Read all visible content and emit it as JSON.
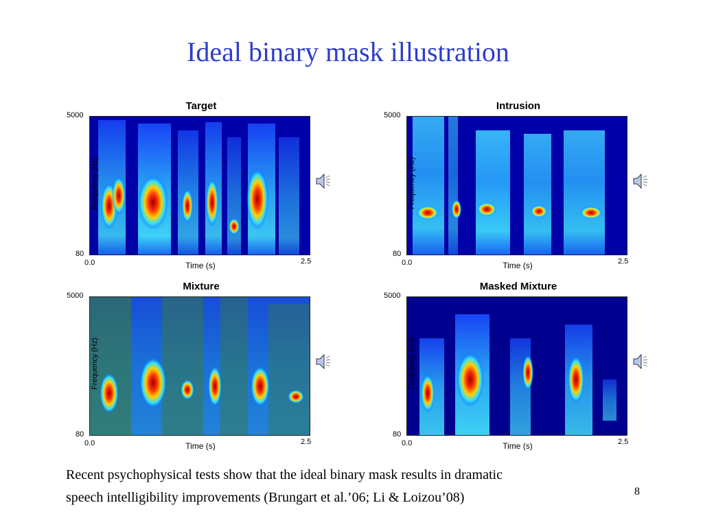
{
  "slide": {
    "title": "Ideal binary mask illustration",
    "caption_line1": "Recent psychophysical tests show that the ideal binary mask results in dramatic",
    "caption_line2": "speech intelligibility improvements (Brungart et al.’06; Li & Loizou’08)",
    "page_number": "8"
  },
  "colors": {
    "title": "#2b3ec9",
    "spectrogram_background": "#00008f",
    "mixture_overlay": "#3a7a3a"
  },
  "panels": [
    {
      "title": "Target",
      "ylabel": "Frequency (Hz)",
      "xlabel": "Time (s)",
      "y_top": "5000",
      "y_bottom": "80",
      "x_left": "0.0",
      "x_right": "2.5",
      "icon": "speaker-icon"
    },
    {
      "title": "Intrusion",
      "ylabel": "Frequency (Hz)",
      "xlabel": "Time (s)",
      "y_top": "5000",
      "y_bottom": "80",
      "x_left": "0.0",
      "x_right": "2.5",
      "icon": "speaker-icon"
    },
    {
      "title": "Mixture",
      "ylabel": "Frequency (Hz)",
      "xlabel": "Time (s)",
      "y_top": "5000",
      "y_bottom": "80",
      "x_left": "0.0",
      "x_right": "2.5",
      "icon": "speaker-icon"
    },
    {
      "title": "Masked Mixture",
      "ylabel": "Frequency (Hz)",
      "xlabel": "Time (s)",
      "y_top": "5000",
      "y_bottom": "80",
      "x_left": "0.0",
      "x_right": "2.5",
      "icon": "speaker-icon"
    }
  ]
}
